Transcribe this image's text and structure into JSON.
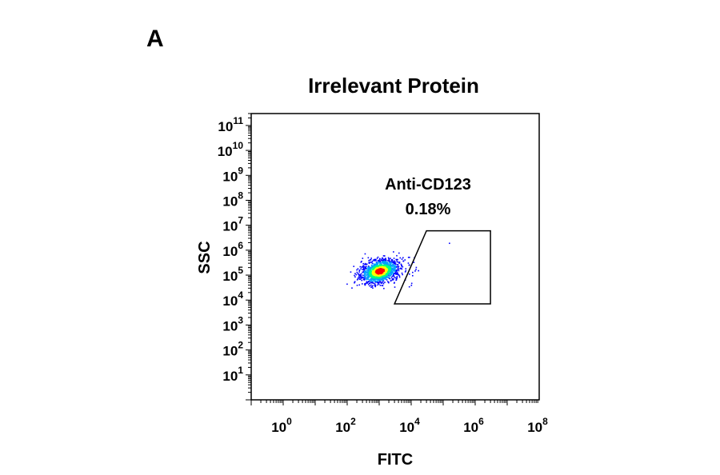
{
  "panel_label": "A",
  "chart_data": {
    "type": "scatter",
    "title": "Irrelevant Protein",
    "xlabel": "FITC",
    "ylabel": "SSC",
    "x_scale": "log",
    "y_scale": "log",
    "xlim": [
      0.1,
      100000000
    ],
    "ylim": [
      1,
      300000000000
    ],
    "x_ticks": [
      {
        "base": "10",
        "exp": "0",
        "value": 1
      },
      {
        "base": "10",
        "exp": "2",
        "value": 100
      },
      {
        "base": "10",
        "exp": "4",
        "value": 10000
      },
      {
        "base": "10",
        "exp": "6",
        "value": 1000000
      },
      {
        "base": "10",
        "exp": "8",
        "value": 100000000
      }
    ],
    "y_ticks": [
      {
        "base": "10",
        "exp": "1",
        "value": 10
      },
      {
        "base": "10",
        "exp": "2",
        "value": 100
      },
      {
        "base": "10",
        "exp": "3",
        "value": 1000
      },
      {
        "base": "10",
        "exp": "4",
        "value": 10000
      },
      {
        "base": "10",
        "exp": "5",
        "value": 100000
      },
      {
        "base": "10",
        "exp": "6",
        "value": 1000000
      },
      {
        "base": "10",
        "exp": "7",
        "value": 10000000
      },
      {
        "base": "10",
        "exp": "8",
        "value": 100000000
      },
      {
        "base": "10",
        "exp": "9",
        "value": 1000000000
      },
      {
        "base": "10",
        "exp": "10",
        "value": 10000000000
      },
      {
        "base": "10",
        "exp": "11",
        "value": 100000000000
      }
    ],
    "population": {
      "center_fitc": 1000,
      "center_ssc": 150000,
      "density_colors": [
        "#0000ff",
        "#00a0ff",
        "#00ff80",
        "#ffff00",
        "#ff0000"
      ]
    },
    "gate": {
      "name": "Anti-CD123",
      "percent": "0.18%",
      "vertices": [
        [
          3000,
          7000
        ],
        [
          30000,
          6000000
        ],
        [
          3000000,
          6000000
        ],
        [
          3000000,
          7000
        ]
      ]
    }
  }
}
